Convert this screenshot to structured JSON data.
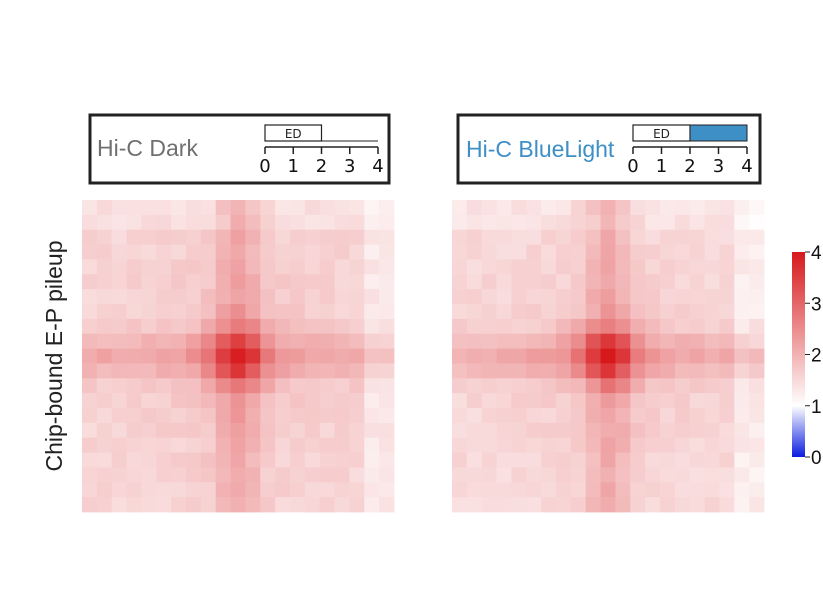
{
  "chart_data": {
    "type": "heatmap",
    "ylabel": "Chip-bound E-P pileup",
    "colorbar": {
      "ticks": [
        "0",
        "1",
        "2",
        "3",
        "4"
      ],
      "range": [
        0,
        4
      ],
      "colors": {
        "low": "#0a1ce0",
        "mid": "#ffffff",
        "high": "#d7191c"
      }
    },
    "grid_size": 21,
    "panels": [
      {
        "title": "Hi-C Dark",
        "title_color": "#707070",
        "timeline": {
          "label": "ED",
          "ticks": [
            "0",
            "1",
            "2",
            "3",
            "4"
          ],
          "ed_range": [
            0,
            2
          ],
          "blue_range": null
        },
        "center_value": 3.8,
        "background_value": 1.55
      },
      {
        "title": "Hi-C BlueLight",
        "title_color": "#3d8fc6",
        "timeline": {
          "label": "ED",
          "ticks": [
            "0",
            "1",
            "2",
            "3",
            "4"
          ],
          "ed_range": [
            0,
            2
          ],
          "blue_range": [
            2,
            4
          ],
          "blue_color": "#3d8fc6"
        },
        "center_value": 3.9,
        "background_value": 1.5
      }
    ]
  }
}
